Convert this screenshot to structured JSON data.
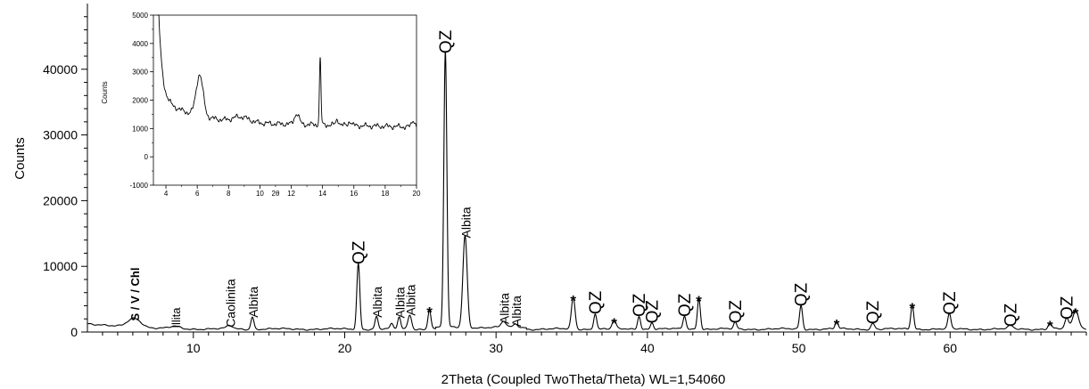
{
  "chart_data": [
    {
      "type": "line",
      "title": "",
      "xlabel": "2Theta (Coupled TwoTheta/Theta) WL=1,54060",
      "ylabel": "Counts",
      "xlim": [
        3,
        69
      ],
      "ylim": [
        0,
        50000
      ],
      "x_ticks": [
        10,
        20,
        30,
        40,
        50,
        60
      ],
      "y_ticks": [
        0,
        10000,
        20000,
        30000,
        40000
      ],
      "x_tick_labels": [
        "10",
        "20",
        "30",
        "40",
        "50",
        "60"
      ],
      "y_tick_labels": [
        "0",
        "10000",
        "20000",
        "30000",
        "40000"
      ],
      "grid": false,
      "background_color": "#ffffff",
      "line_color": "#000000",
      "baseline": 450,
      "peaks": [
        {
          "x": 6.1,
          "y": 1500,
          "w": 0.45
        },
        {
          "x": 8.8,
          "y": 350,
          "w": 0.3
        },
        {
          "x": 12.4,
          "y": 500,
          "w": 0.2
        },
        {
          "x": 13.9,
          "y": 1900,
          "w": 0.1
        },
        {
          "x": 20.9,
          "y": 10000,
          "w": 0.1
        },
        {
          "x": 22.1,
          "y": 1900,
          "w": 0.1
        },
        {
          "x": 23.1,
          "y": 700,
          "w": 0.1
        },
        {
          "x": 23.6,
          "y": 1800,
          "w": 0.1
        },
        {
          "x": 24.3,
          "y": 2200,
          "w": 0.12
        },
        {
          "x": 25.6,
          "y": 3000,
          "w": 0.1
        },
        {
          "x": 26.65,
          "y": 42000,
          "w": 0.1
        },
        {
          "x": 27.95,
          "y": 14000,
          "w": 0.14
        },
        {
          "x": 30.5,
          "y": 900,
          "w": 0.15
        },
        {
          "x": 31.3,
          "y": 500,
          "w": 0.15
        },
        {
          "x": 35.1,
          "y": 4800,
          "w": 0.12
        },
        {
          "x": 36.55,
          "y": 2400,
          "w": 0.1
        },
        {
          "x": 37.8,
          "y": 1300,
          "w": 0.12
        },
        {
          "x": 39.45,
          "y": 2000,
          "w": 0.1
        },
        {
          "x": 40.3,
          "y": 1000,
          "w": 0.1
        },
        {
          "x": 42.45,
          "y": 2000,
          "w": 0.1
        },
        {
          "x": 43.4,
          "y": 4700,
          "w": 0.1
        },
        {
          "x": 45.8,
          "y": 1000,
          "w": 0.1
        },
        {
          "x": 50.15,
          "y": 3600,
          "w": 0.1
        },
        {
          "x": 52.5,
          "y": 1100,
          "w": 0.1
        },
        {
          "x": 54.9,
          "y": 900,
          "w": 0.12
        },
        {
          "x": 57.5,
          "y": 3600,
          "w": 0.1
        },
        {
          "x": 59.95,
          "y": 2300,
          "w": 0.1
        },
        {
          "x": 64.0,
          "y": 500,
          "w": 0.15
        },
        {
          "x": 66.6,
          "y": 900,
          "w": 0.12
        },
        {
          "x": 67.7,
          "y": 1600,
          "w": 0.12
        },
        {
          "x": 68.3,
          "y": 2800,
          "w": 0.2
        }
      ],
      "annotations": [
        {
          "text": "S / V / Chl",
          "x": 6.1,
          "y": 1700,
          "size": 13,
          "serif": true,
          "bold": true
        },
        {
          "text": "Illita",
          "x": 8.8,
          "y": 600,
          "size": 13,
          "serif": true,
          "bold": false
        },
        {
          "text": "Caolinita",
          "x": 12.4,
          "y": 700,
          "size": 14
        },
        {
          "text": "Albita",
          "x": 13.9,
          "y": 2200,
          "size": 14
        },
        {
          "text": "QZ",
          "x": 20.9,
          "y": 10300,
          "size": 19
        },
        {
          "text": "Albita",
          "x": 22.1,
          "y": 2200,
          "size": 14
        },
        {
          "text": "Albita",
          "x": 23.6,
          "y": 2100,
          "size": 14
        },
        {
          "text": "Albita",
          "x": 24.3,
          "y": 2500,
          "size": 14
        },
        {
          "text": "*",
          "x": 25.6,
          "y": 3300,
          "size": 17,
          "star": true
        },
        {
          "text": "QZ",
          "x": 26.65,
          "y": 42400,
          "size": 19
        },
        {
          "text": "Albita",
          "x": 27.95,
          "y": 14300,
          "size": 14
        },
        {
          "text": "Albita",
          "x": 30.5,
          "y": 1200,
          "size": 14
        },
        {
          "text": "Albita",
          "x": 31.3,
          "y": 800,
          "size": 14
        },
        {
          "text": "*",
          "x": 35.1,
          "y": 5100,
          "size": 17,
          "star": true
        },
        {
          "text": "QZ",
          "x": 36.55,
          "y": 2700,
          "size": 19
        },
        {
          "text": "*",
          "x": 37.8,
          "y": 1600,
          "size": 17,
          "star": true
        },
        {
          "text": "QZ",
          "x": 39.45,
          "y": 2300,
          "size": 19
        },
        {
          "text": "QZ",
          "x": 40.3,
          "y": 1300,
          "size": 19
        },
        {
          "text": "QZ",
          "x": 42.45,
          "y": 2300,
          "size": 19
        },
        {
          "text": "*",
          "x": 43.4,
          "y": 5000,
          "size": 17,
          "star": true
        },
        {
          "text": "QZ",
          "x": 45.8,
          "y": 1300,
          "size": 19
        },
        {
          "text": "QZ",
          "x": 50.15,
          "y": 3900,
          "size": 19
        },
        {
          "text": "*",
          "x": 52.5,
          "y": 1400,
          "size": 17,
          "star": true
        },
        {
          "text": "QZ",
          "x": 54.9,
          "y": 1200,
          "size": 19
        },
        {
          "text": "*",
          "x": 57.5,
          "y": 3900,
          "size": 17,
          "star": true
        },
        {
          "text": "QZ",
          "x": 59.95,
          "y": 2600,
          "size": 19
        },
        {
          "text": "QZ",
          "x": 64.0,
          "y": 800,
          "size": 19
        },
        {
          "text": "*",
          "x": 66.6,
          "y": 1200,
          "size": 17,
          "star": true
        },
        {
          "text": "QZ",
          "x": 67.7,
          "y": 1900,
          "size": 19
        },
        {
          "text": "*",
          "x": 68.3,
          "y": 3100,
          "size": 17,
          "star": true
        }
      ]
    },
    {
      "type": "line",
      "title": "",
      "xlabel": "2θ",
      "ylabel": "Counts",
      "xlim": [
        3.2,
        20
      ],
      "ylim": [
        -1000,
        5000
      ],
      "x_ticks": [
        4,
        6,
        8,
        10,
        12,
        14,
        16,
        18,
        20
      ],
      "y_ticks": [
        -1000,
        0,
        1000,
        2000,
        3000,
        4000,
        5000
      ],
      "x_tick_labels": [
        "4",
        "6",
        "8",
        "10",
        "12",
        "14",
        "16",
        "18",
        "20"
      ],
      "y_tick_labels": [
        "-1000",
        "0",
        "1000",
        "2000",
        "3000",
        "4000",
        "5000"
      ],
      "grid": false,
      "line_color": "#000000",
      "peaks": [
        {
          "x": 6.15,
          "y": 1450,
          "w": 0.22
        },
        {
          "x": 8.8,
          "y": 180,
          "w": 0.5
        },
        {
          "x": 12.35,
          "y": 380,
          "w": 0.15
        },
        {
          "x": 13.85,
          "y": 2300,
          "w": 0.05
        },
        {
          "x": 14.95,
          "y": 200,
          "w": 0.1
        },
        {
          "x": 15.75,
          "y": 150,
          "w": 0.1
        },
        {
          "x": 19.8,
          "y": 250,
          "w": 0.1
        }
      ]
    }
  ]
}
